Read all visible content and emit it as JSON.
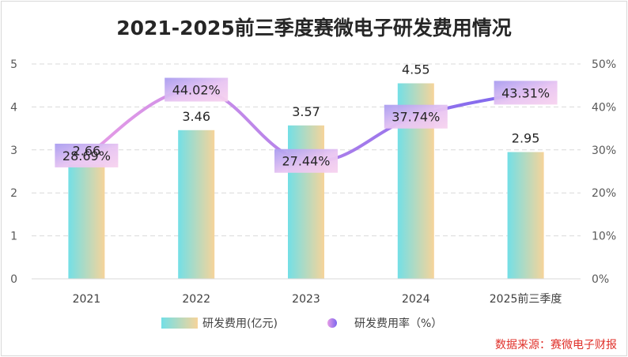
{
  "chart_data": {
    "type": "bar+line",
    "title": "2021-2025前三季度赛微电子研发费用情况",
    "categories": [
      "2021",
      "2022",
      "2023",
      "2024",
      "2025前三季度"
    ],
    "series": [
      {
        "name": "研发费用(亿元)",
        "type": "bar",
        "axis": "left",
        "values": [
          2.66,
          3.46,
          3.57,
          4.55,
          2.95
        ],
        "labels": [
          "2.66",
          "3.46",
          "3.57",
          "4.55",
          "2.95"
        ]
      },
      {
        "name": "研发费用率（%）",
        "type": "line",
        "axis": "right",
        "values": [
          28.69,
          44.02,
          27.44,
          37.74,
          43.31
        ],
        "labels": [
          "28.69%",
          "44.02%",
          "27.44%",
          "37.74%",
          "43.31%"
        ]
      }
    ],
    "y_left": {
      "min": 0,
      "max": 5,
      "ticks": [
        "0",
        "1",
        "2",
        "3",
        "4",
        "5"
      ]
    },
    "y_right": {
      "min": 0,
      "max": 50,
      "ticks": [
        "0%",
        "10%",
        "20%",
        "30%",
        "40%",
        "50%"
      ]
    },
    "grid": true,
    "legend_position": "bottom",
    "colors": {
      "bar_start": "#73dfe6",
      "bar_end": "#f6d49a",
      "line_start": "#e79ce6",
      "line_end": "#7b66ee",
      "label_box_start": "#a99cf0",
      "label_box_end": "#f3c9ef"
    }
  },
  "source_text": "数据来源：赛微电子财报"
}
